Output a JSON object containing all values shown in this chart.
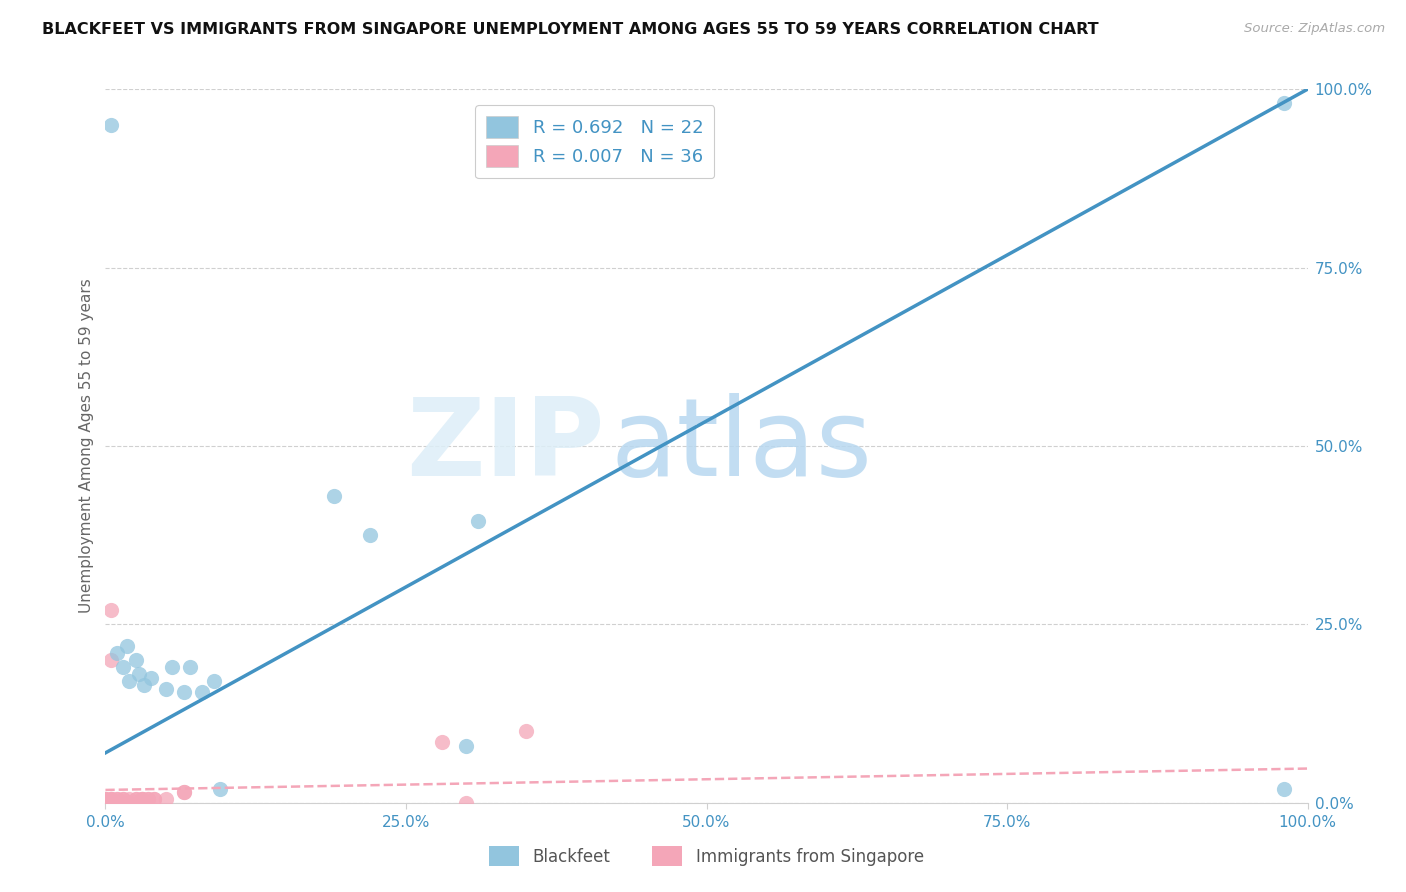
{
  "title": "BLACKFEET VS IMMIGRANTS FROM SINGAPORE UNEMPLOYMENT AMONG AGES 55 TO 59 YEARS CORRELATION CHART",
  "source": "Source: ZipAtlas.com",
  "ylabel": "Unemployment Among Ages 55 to 59 years",
  "watermark_zip": "ZIP",
  "watermark_atlas": "atlas",
  "blackfeet_R": "0.692",
  "blackfeet_N": "22",
  "singapore_R": "0.007",
  "singapore_N": "36",
  "blackfeet_color": "#92c5de",
  "singapore_color": "#f4a6b8",
  "blackfeet_line_color": "#4393c3",
  "singapore_line_color": "#f4a6b8",
  "tick_color": "#4393c3",
  "xlim": [
    0.0,
    1.0
  ],
  "ylim": [
    0.0,
    1.0
  ],
  "ticks": [
    0.0,
    0.25,
    0.5,
    0.75,
    1.0
  ],
  "ticklabels": [
    "0.0%",
    "25.0%",
    "50.0%",
    "75.0%",
    "100.0%"
  ],
  "bf_line_x0": 0.0,
  "bf_line_y0": 0.07,
  "bf_line_x1": 1.0,
  "bf_line_y1": 1.0,
  "sg_line_x0": 0.0,
  "sg_line_y0": 0.018,
  "sg_line_x1": 1.0,
  "sg_line_y1": 0.048,
  "blackfeet_x": [
    0.005,
    0.01,
    0.015,
    0.018,
    0.02,
    0.025,
    0.028,
    0.032,
    0.038,
    0.05,
    0.055,
    0.065,
    0.07,
    0.08,
    0.09,
    0.095,
    0.19,
    0.22,
    0.3,
    0.31,
    0.98,
    0.98
  ],
  "blackfeet_y": [
    0.95,
    0.21,
    0.19,
    0.22,
    0.17,
    0.2,
    0.18,
    0.165,
    0.175,
    0.16,
    0.19,
    0.155,
    0.19,
    0.155,
    0.17,
    0.02,
    0.43,
    0.375,
    0.08,
    0.395,
    0.98,
    0.02
  ],
  "singapore_x": [
    0.0,
    0.0,
    0.0,
    0.0,
    0.0,
    0.0,
    0.005,
    0.005,
    0.005,
    0.005,
    0.005,
    0.005,
    0.005,
    0.01,
    0.01,
    0.01,
    0.015,
    0.015,
    0.02,
    0.02,
    0.02,
    0.025,
    0.025,
    0.03,
    0.03,
    0.03,
    0.035,
    0.035,
    0.04,
    0.04,
    0.05,
    0.065,
    0.065,
    0.28,
    0.3,
    0.35
  ],
  "singapore_y": [
    0.0,
    0.0,
    0.0,
    0.005,
    0.005,
    0.005,
    0.0,
    0.0,
    0.005,
    0.005,
    0.005,
    0.27,
    0.2,
    0.0,
    0.005,
    0.005,
    0.005,
    0.005,
    0.0,
    0.0,
    0.005,
    0.005,
    0.005,
    0.005,
    0.005,
    0.005,
    0.005,
    0.005,
    0.005,
    0.005,
    0.005,
    0.015,
    0.015,
    0.085,
    0.0,
    0.1
  ]
}
